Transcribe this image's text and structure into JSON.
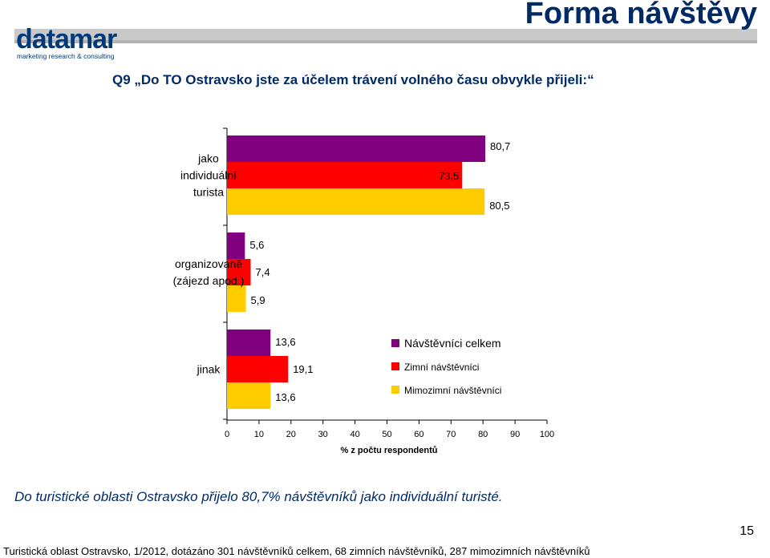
{
  "header": {
    "title": "Forma návštěvy",
    "logo_word": "datamar",
    "logo_tagline": "marketing research & consulting"
  },
  "question": "Q9 „Do TO Ostravsko jste za účelem trávení volného času obvykle přijeli:“",
  "bottom_note": "Do turistické oblasti Ostravsko přijelo 80,7% návštěvníků jako individuální turisté.",
  "page_number": "15",
  "footer": "Turistická oblast Ostravsko, 1/2012, dotázáno 301 návštěvníků celkem, 68 zimních návštěvníků, 287 mimozimních návštěvníků",
  "chart_data": {
    "type": "bar",
    "orientation": "horizontal",
    "categories": [
      [
        "jako",
        "individuální",
        "turista"
      ],
      [
        "organizovaně",
        "(zájezd apod.)"
      ],
      [
        "jinak"
      ]
    ],
    "series": [
      {
        "name": "Návštěvníci celkem",
        "color": "#800080",
        "values": [
          80.7,
          5.6,
          13.6
        ],
        "labels": [
          "80,7",
          "5,6",
          "13,6"
        ]
      },
      {
        "name": "Zimní návštěvníci",
        "color": "#ff0000",
        "values": [
          73.5,
          7.4,
          19.1
        ],
        "labels": [
          "73,5",
          "7,4",
          "19,1"
        ]
      },
      {
        "name": "Mimozimní návštěvníci",
        "color": "#ffcc00",
        "values": [
          80.5,
          5.9,
          13.6
        ],
        "labels": [
          "80,5",
          "5,9",
          "13,6"
        ]
      }
    ],
    "xlabel": "% z počtu respondentů",
    "xlim": [
      0,
      100
    ],
    "xticks": [
      0,
      10,
      20,
      30,
      40,
      50,
      60,
      70,
      80,
      90,
      100
    ],
    "legend_position": "right, inside plot near bottom category",
    "grid": false
  }
}
